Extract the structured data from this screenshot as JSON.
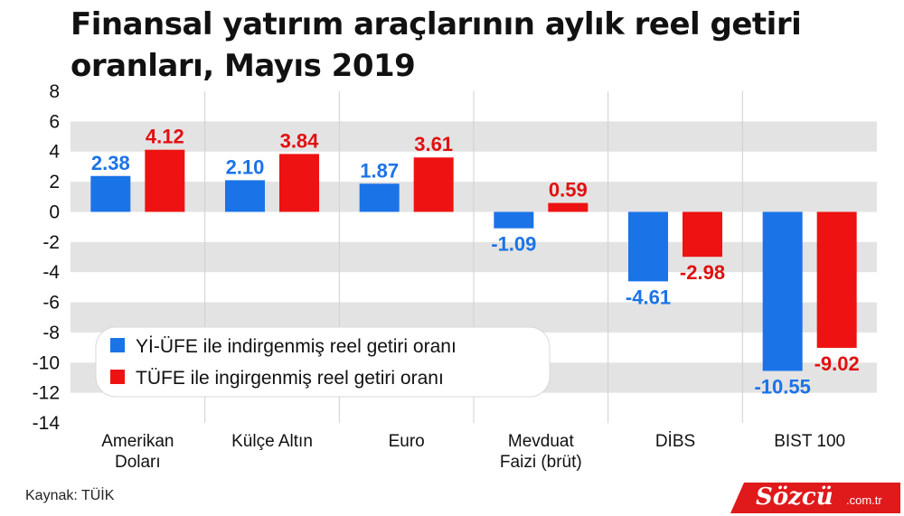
{
  "title": "Finansal yatırım araçlarının aylık reel getiri oranları, Mayıs 2019",
  "source": "Kaynak: TÜİK",
  "brand": {
    "name": "Sözcü",
    "domain": ".com.tr"
  },
  "colors": {
    "series1": "#1b73e8",
    "series2": "#ee1212",
    "band": "#e3e3e3",
    "label1": "#1b73e8",
    "label2": "#e01010"
  },
  "chart_data": {
    "type": "bar",
    "title": "Finansal yatırım araçlarının aylık reel getiri oranları, Mayıs 2019",
    "categories": [
      [
        "Amerikan",
        "Doları"
      ],
      [
        "Külçe Altın"
      ],
      [
        "Euro"
      ],
      [
        "Mevduat",
        "Faizi (brüt)"
      ],
      [
        "DİBS"
      ],
      [
        "BIST 100"
      ]
    ],
    "series": [
      {
        "name": "Yİ-ÜFE ile indirgenmiş reel getiri oranı",
        "values": [
          2.38,
          2.1,
          1.87,
          -1.09,
          -4.61,
          -10.55
        ],
        "labels": [
          "2.38",
          "2.10",
          "1.87",
          "-1.09",
          "-4.61",
          "-10.55"
        ]
      },
      {
        "name": "TÜFE ile ingirgenmiş reel getiri oranı",
        "values": [
          4.12,
          3.84,
          3.61,
          0.59,
          -2.98,
          -9.02
        ],
        "labels": [
          "4.12",
          "3.84",
          "3.61",
          "0.59",
          "-2.98",
          "-9.02"
        ]
      }
    ],
    "ylim": [
      -14,
      8
    ],
    "yticks": [
      8,
      6,
      4,
      2,
      0,
      -2,
      -4,
      -6,
      -8,
      -10,
      -12,
      -14
    ],
    "grid": "alternating horizontal bands",
    "legend": "bottom-left"
  }
}
